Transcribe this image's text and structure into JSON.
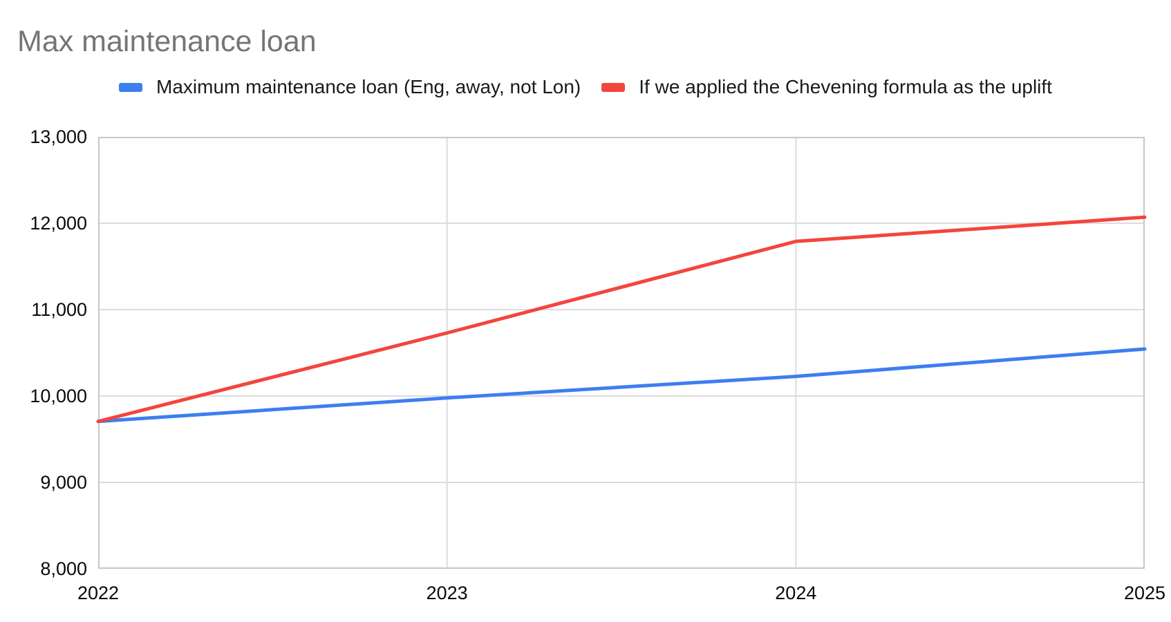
{
  "title": "Max maintenance loan",
  "legend": [
    {
      "label": "Maximum maintenance loan (Eng, away, not Lon)",
      "color": "#3D7EF0"
    },
    {
      "label": "If we applied the Chevening formula as the uplift",
      "color": "#F4453C"
    }
  ],
  "colors": {
    "title_text": "#757575",
    "axis_text": "#0a0a0a",
    "gridline": "#dcdcdc",
    "plot_border": "#c6c6c6",
    "background": "#ffffff"
  },
  "chart_data": {
    "type": "line",
    "title": "Max maintenance loan",
    "x": [
      2022,
      2023,
      2024,
      2025
    ],
    "x_tick_labels": [
      "2022",
      "2023",
      "2024",
      "2025"
    ],
    "y_ticks": [
      13000,
      12000,
      11000,
      10000,
      9000,
      8000
    ],
    "y_tick_labels": [
      "13,000",
      "12,000",
      "11,000",
      "10,000",
      "9,000",
      "8,000"
    ],
    "ylim": [
      8000,
      13000
    ],
    "grid": true,
    "legend_position": "top",
    "series": [
      {
        "name": "Maximum maintenance loan (Eng, away, not Lon)",
        "color": "#3D7EF0",
        "values": [
          9706,
          9978,
          10227,
          10544
        ]
      },
      {
        "name": "If we applied the Chevening formula as the uplift",
        "color": "#F4453C",
        "values": [
          9706,
          10730,
          11790,
          12070
        ]
      }
    ]
  }
}
